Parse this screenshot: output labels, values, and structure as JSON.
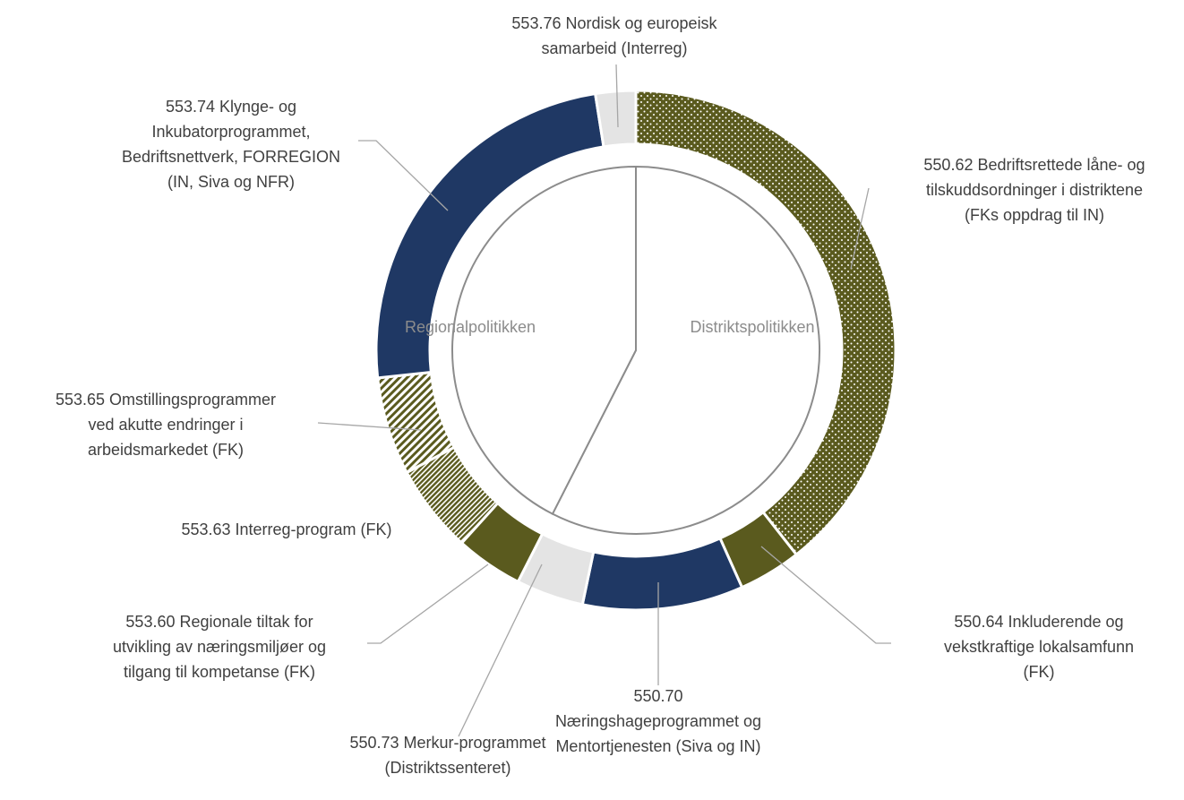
{
  "chart_data": {
    "type": "donut",
    "slices": [
      {
        "label": [
          "550.62 Bedriftsrettede låne- og",
          "tilskuddsordninger i distriktene",
          "(FKs oppdrag til IN)"
        ],
        "value": 39.4,
        "color": "#5a5a1e",
        "pattern": "dots"
      },
      {
        "label": [
          "550.64 Inkluderende og",
          "vekstkraftige lokalsamfunn",
          "(FK)"
        ],
        "value": 3.9,
        "color": "#5a5a1e",
        "pattern": "solid"
      },
      {
        "label": [
          "550.70",
          "Næringshageprogrammet og",
          "Mentortjenesten (Siva og IN)"
        ],
        "value": 10,
        "color": "#1f3864",
        "pattern": "solid"
      },
      {
        "label": [
          "550.73 Merkur-programmet",
          "(Distriktssenteret)"
        ],
        "value": 4.2,
        "color": "#e4e4e4",
        "pattern": "solid"
      },
      {
        "label": [
          "553.60 Regionale tiltak for",
          "utvikling av næringsmiljøer og",
          "tilgang til kompetanse (FK)"
        ],
        "value": 4.2,
        "color": "#5a5a1e",
        "pattern": "solid"
      },
      {
        "label": [
          "553.63 Interreg-program (FK)"
        ],
        "value": 5.5,
        "color": "#5a5a1e",
        "pattern": "dense-hatch"
      },
      {
        "label": [
          "553.65 Omstillingsprogrammer",
          "ved akutte endringer i",
          "arbeidsmarkedet (FK)"
        ],
        "value": 6.1,
        "color": "#5a5a1e",
        "pattern": "hatch"
      },
      {
        "label": [
          "553.74 Klynge- og",
          "Inkubatorprogrammet,",
          "Bedriftsnettverk, FORREGION",
          "(IN, Siva og NFR)"
        ],
        "value": 24.2,
        "color": "#1f3864",
        "pattern": "solid"
      },
      {
        "label": [
          "553.76 Nordisk og europeisk",
          "samarbeid (Interreg)"
        ],
        "value": 2.5,
        "color": "#e4e4e4",
        "pattern": "solid"
      }
    ],
    "inner": [
      {
        "label": "Distriktspolitikken",
        "value": 57.5
      },
      {
        "label": "Regionalpolitikken",
        "value": 42.5
      }
    ]
  }
}
